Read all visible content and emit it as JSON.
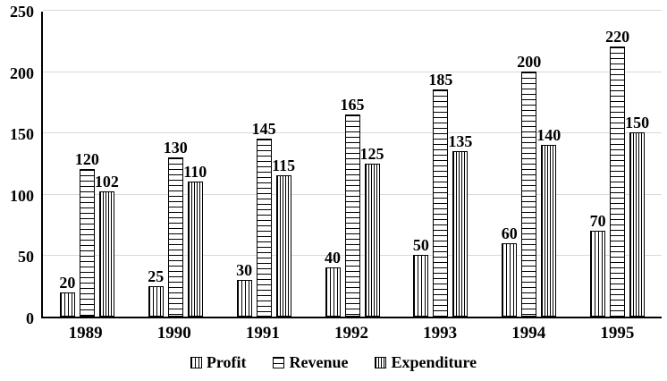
{
  "chart_data": {
    "type": "bar",
    "title": "",
    "xlabel": "",
    "ylabel": "",
    "categories": [
      "1989",
      "1990",
      "1991",
      "1992",
      "1993",
      "1994",
      "1995"
    ],
    "series": [
      {
        "name": "Profit",
        "pattern": "vertical-sparse",
        "values": [
          20,
          25,
          30,
          40,
          50,
          60,
          70
        ]
      },
      {
        "name": "Revenue",
        "pattern": "horizontal",
        "values": [
          120,
          130,
          145,
          165,
          185,
          200,
          220
        ]
      },
      {
        "name": "Expenditure",
        "pattern": "vertical-dense",
        "values": [
          102,
          110,
          115,
          125,
          135,
          140,
          150
        ]
      }
    ],
    "y_ticks": [
      0,
      50,
      100,
      150,
      200,
      250
    ],
    "ylim": [
      0,
      250
    ],
    "grid": true,
    "data_labels": true,
    "legend_position": "bottom"
  },
  "colors": {
    "background": "#ffffff",
    "bar_fill": "#ffffff",
    "bar_border": "#000000",
    "gridline": "#d9d9d9",
    "axis": "#000000",
    "text": "#000000"
  }
}
